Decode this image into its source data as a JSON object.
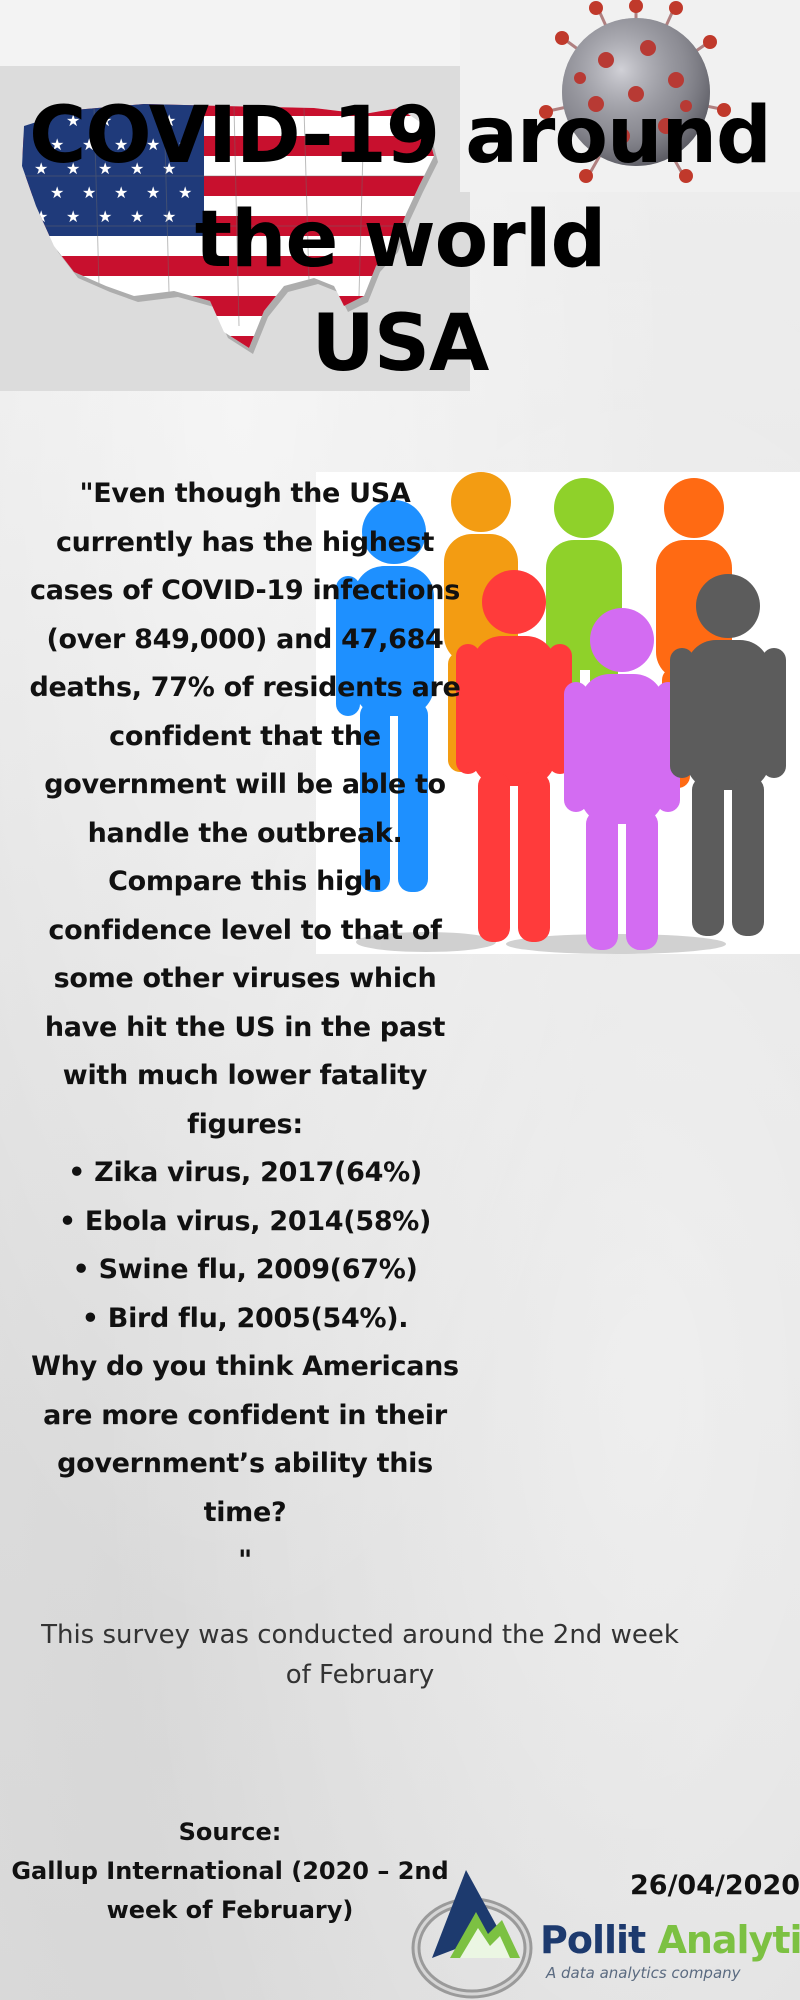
{
  "title": {
    "line1": "COVID-19 around",
    "line2": "the world",
    "line3": "USA"
  },
  "body": {
    "lines": [
      "\"Even though the USA",
      "currently has the highest",
      "cases of COVID-19 infections",
      "(over 849,000) and 47,684",
      "deaths, 77% of residents are",
      "confident that the",
      "government will be able to",
      "handle the outbreak.",
      "Compare this high",
      "confidence level to that of",
      "some other viruses which",
      "have hit the US in the past",
      "with much lower fatality",
      "figures:",
      "• Zika virus, 2017(64%)",
      "• Ebola virus, 2014(58%)",
      "• Swine flu, 2009(67%)",
      "• Bird flu, 2005(54%).",
      "Why do you think Americans",
      "are more confident in their",
      "government’s ability this",
      "time?",
      "\""
    ]
  },
  "survey_note": {
    "line1": "This survey was conducted around the 2nd week",
    "line2": "of February"
  },
  "source": {
    "label": "Source:",
    "line1": "Gallup International (2020 – 2nd",
    "line2": "week of February)"
  },
  "date": "26/04/2020",
  "brand": {
    "name_part1": "Pollit",
    "name_part2": "Analytics",
    "tagline": "A data analytics company",
    "colors": {
      "navy": "#1d3a6e",
      "green": "#7cc142"
    }
  },
  "figures": {
    "flag": "usa-flag-map",
    "virus": "coronavirus-image",
    "people": "colorful-people-figures",
    "logo": "pollit-analytics-logo-icon"
  }
}
